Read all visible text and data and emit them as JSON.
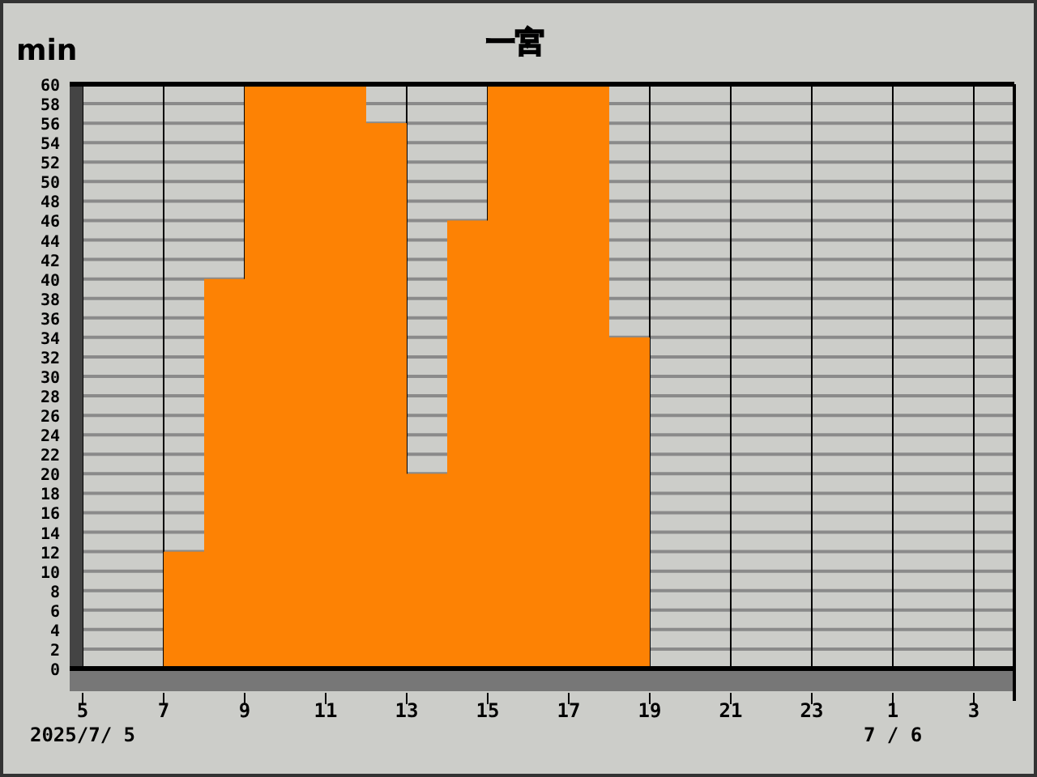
{
  "chart_data": {
    "type": "bar",
    "title": "一宮",
    "ylabel": "min",
    "x": [
      "2025-07-05T07:30",
      "2025-07-05T08:30",
      "2025-07-05T09:30",
      "2025-07-05T10:30",
      "2025-07-05T11:30",
      "2025-07-05T12:30",
      "2025-07-05T13:30",
      "2025-07-05T14:30",
      "2025-07-05T15:30",
      "2025-07-05T16:30",
      "2025-07-05T17:30",
      "2025-07-05T18:30"
    ],
    "values": [
      12,
      40,
      60,
      60,
      60,
      56,
      20,
      46,
      60,
      60,
      60,
      34
    ],
    "color": "#fd8204",
    "xlim": [
      "2025-07-05T05:00",
      "2025-07-06T04:00"
    ],
    "xticks": [
      {
        "value": "2025-07-05T05:00",
        "label": "5"
      },
      {
        "value": "2025-07-05T07:00",
        "label": "7"
      },
      {
        "value": "2025-07-05T09:00",
        "label": "9"
      },
      {
        "value": "2025-07-05T11:00",
        "label": "11"
      },
      {
        "value": "2025-07-05T13:00",
        "label": "13"
      },
      {
        "value": "2025-07-05T15:00",
        "label": "15"
      },
      {
        "value": "2025-07-05T17:00",
        "label": "17"
      },
      {
        "value": "2025-07-05T19:00",
        "label": "19"
      },
      {
        "value": "2025-07-05T21:00",
        "label": "21"
      },
      {
        "value": "2025-07-05T23:00",
        "label": "23"
      },
      {
        "value": "2025-07-06T01:00",
        "label": "1"
      },
      {
        "value": "2025-07-06T03:00",
        "label": "3"
      }
    ],
    "ylim": [
      0,
      60
    ],
    "yticks": [
      0,
      2,
      4,
      6,
      8,
      10,
      12,
      14,
      16,
      18,
      20,
      22,
      24,
      26,
      28,
      30,
      32,
      34,
      36,
      38,
      40,
      42,
      44,
      46,
      48,
      50,
      52,
      54,
      56,
      58,
      60
    ],
    "grid": true,
    "annotations": [
      "2025/7/ 5",
      "7 / 6"
    ]
  }
}
